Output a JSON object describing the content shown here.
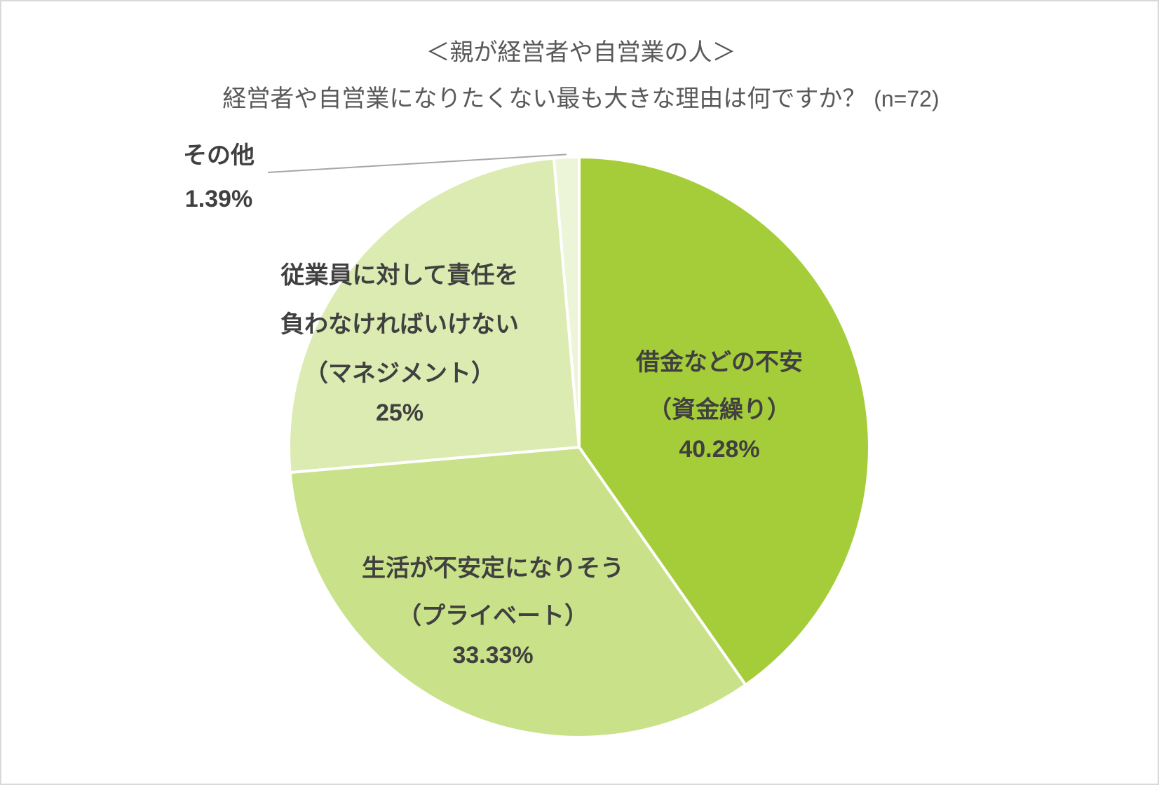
{
  "title": {
    "line1": "＜親が経営者や自営業の人＞",
    "line2": "経営者や自営業になりたくない最も大きな理由は何ですか？",
    "n": "(n=72)"
  },
  "chart_data": {
    "type": "pie",
    "start_angle_deg": 0,
    "direction": "clockwise",
    "slices": [
      {
        "label_lines": [
          "借金などの不安",
          "（資金繰り）"
        ],
        "value": 40.28,
        "display": "40.28%",
        "color": "#a5cd39"
      },
      {
        "label_lines": [
          "生活が不安定になりそう",
          "（プライベート）"
        ],
        "value": 33.33,
        "display": "33.33%",
        "color": "#c9e28a"
      },
      {
        "label_lines": [
          "従業員に対して責任を",
          "負わなければいけない",
          "（マネジメント）"
        ],
        "value": 25,
        "display": "25%",
        "color": "#dbebb1"
      },
      {
        "label_lines": [
          "その他"
        ],
        "value": 1.39,
        "display": "1.39%",
        "color": "#edf5d8"
      }
    ]
  }
}
